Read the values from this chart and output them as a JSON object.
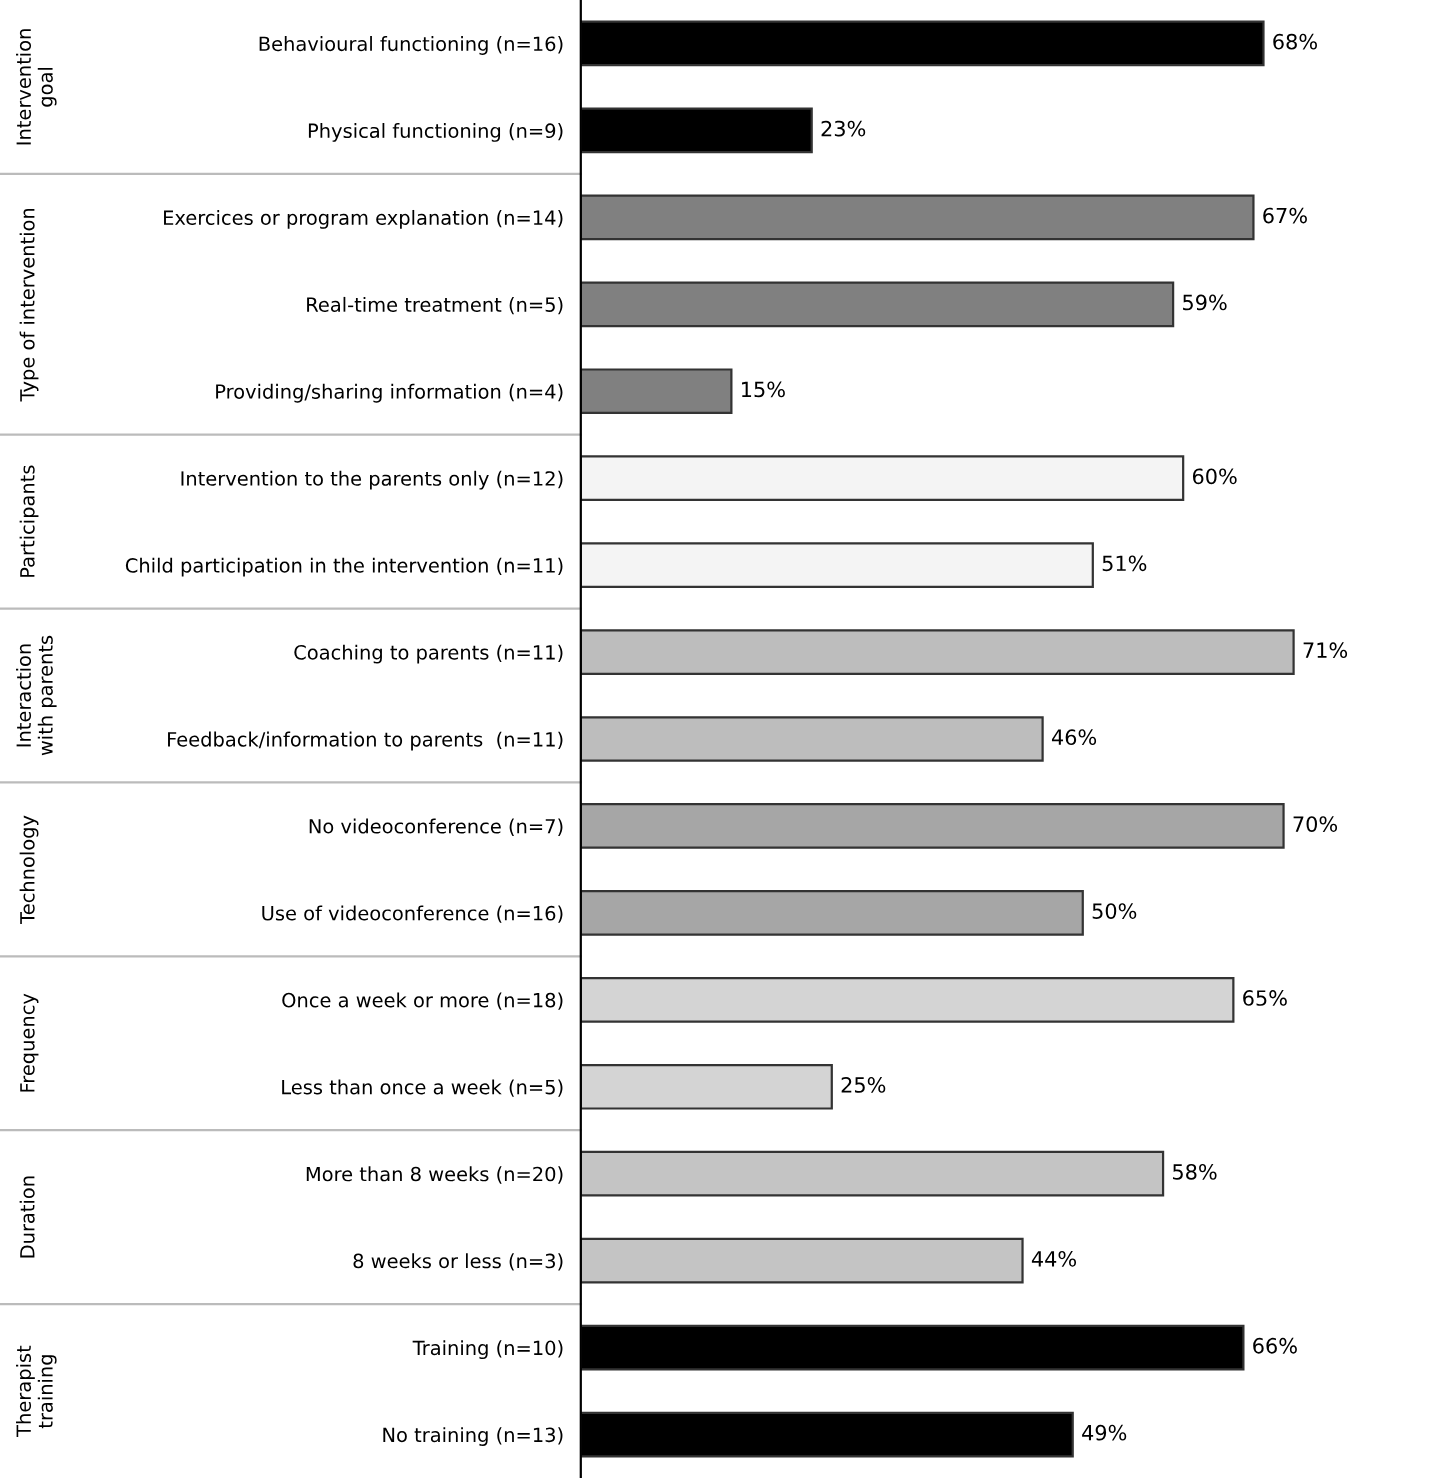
{
  "chart_data": {
    "type": "bar",
    "orientation": "horizontal",
    "categories": [
      "Behavioural functioning (n=16)",
      "Physical functioning (n=9)",
      "Exercices or program explanation (n=14)",
      "Real-time treatment (n=5)",
      "Providing/sharing information (n=4)",
      "Intervention to the parents only (n=12)",
      "Child participation in the intervention (n=11)",
      "Coaching to parents (n=11)",
      "Feedback/information to parents  (n=11)",
      "No videoconference (n=7)",
      "Use of videoconference (n=16)",
      "Once a week or more (n=18)",
      "Less than once a week (n=5)",
      "More than 8 weeks (n=20)",
      "8 weeks or less (n=3)",
      "Training (n=10)",
      "No training (n=13)"
    ],
    "values": [
      68,
      23,
      67,
      59,
      15,
      60,
      51,
      71,
      46,
      70,
      50,
      65,
      25,
      58,
      44,
      66,
      49
    ],
    "value_labels": [
      "68%",
      "23%",
      "67%",
      "59%",
      "15%",
      "60%",
      "51%",
      "71%",
      "46%",
      "70%",
      "50%",
      "65%",
      "25%",
      "58%",
      "44%",
      "66%",
      "49%"
    ],
    "colors": [
      "#000000",
      "#000000",
      "#808080",
      "#808080",
      "#808080",
      "#f4f4f4",
      "#f4f4f4",
      "#bdbdbd",
      "#bdbdbd",
      "#a6a6a6",
      "#a6a6a6",
      "#d4d4d4",
      "#d4d4d4",
      "#c4c4c4",
      "#c4c4c4",
      "#000000",
      "#000000"
    ],
    "annotations": [
      "Intervention goal",
      "Type of intervention",
      "Participants",
      "Interaction with parents",
      "Technology",
      "Frequency",
      "Duration",
      "Therapist training"
    ],
    "grid": false,
    "legend": false
  }
}
